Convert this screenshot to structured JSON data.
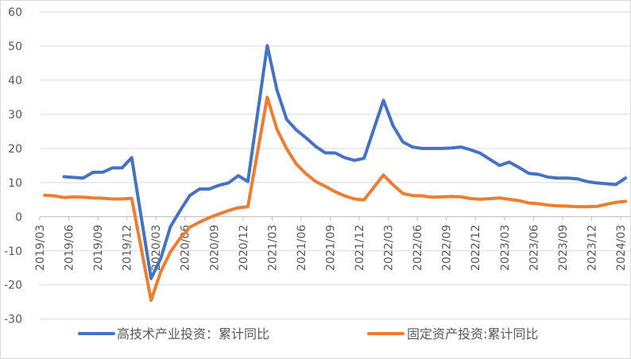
{
  "chart_data": {
    "type": "line",
    "title": "",
    "xlabel": "",
    "ylabel": "",
    "ylim": [
      -30,
      60
    ],
    "y_ticks": [
      -30,
      -20,
      -10,
      0,
      10,
      20,
      30,
      40,
      50,
      60
    ],
    "grid": "horizontal",
    "legend": "bottom",
    "x": [
      "2019/03",
      "2019/04",
      "2019/05",
      "2019/06",
      "2019/07",
      "2019/08",
      "2019/09",
      "2019/10",
      "2019/11",
      "2019/12",
      "2020/01",
      "2020/02",
      "2020/03",
      "2020/04",
      "2020/05",
      "2020/06",
      "2020/07",
      "2020/08",
      "2020/09",
      "2020/10",
      "2020/11",
      "2020/12",
      "2021/01",
      "2021/02",
      "2021/03",
      "2021/04",
      "2021/05",
      "2021/06",
      "2021/07",
      "2021/08",
      "2021/09",
      "2021/10",
      "2021/11",
      "2021/12",
      "2022/01",
      "2022/02",
      "2022/03",
      "2022/04",
      "2022/05",
      "2022/06",
      "2022/07",
      "2022/08",
      "2022/09",
      "2022/10",
      "2022/11",
      "2022/12",
      "2023/01",
      "2023/02",
      "2023/03",
      "2023/04",
      "2023/05",
      "2023/06",
      "2023/07",
      "2023/08",
      "2023/09",
      "2023/10",
      "2023/11",
      "2023/12",
      "2024/01",
      "2024/02",
      "2024/03"
    ],
    "x_tick_labels": [
      "2019/03",
      "2019/06",
      "2019/09",
      "2019/12",
      "2020/03",
      "2020/06",
      "2020/09",
      "2020/12",
      "2021/03",
      "2021/06",
      "2021/09",
      "2021/12",
      "2022/03",
      "2022/06",
      "2022/09",
      "2022/12",
      "2023/03",
      "2023/06",
      "2023/09",
      "2023/12",
      "2024/03"
    ],
    "series": [
      {
        "name": "高技术产业投资：累计同比",
        "color": "#4472C4",
        "values": [
          null,
          null,
          11.7,
          11.5,
          11.3,
          13.0,
          13.0,
          14.3,
          14.3,
          17.3,
          null,
          -18.1,
          -12.2,
          -2.9,
          1.8,
          6.2,
          8.1,
          8.1,
          9.2,
          9.9,
          12.0,
          10.3,
          null,
          50.1,
          37.1,
          28.5,
          25.4,
          23.1,
          20.6,
          18.7,
          18.7,
          17.3,
          16.5,
          17.1,
          null,
          34.1,
          26.6,
          21.9,
          20.4,
          20.0,
          20.0,
          20.0,
          20.1,
          20.4,
          19.6,
          18.6,
          null,
          15.0,
          16.0,
          14.4,
          12.7,
          12.4,
          11.6,
          11.3,
          11.3,
          11.1,
          10.3,
          9.9,
          null,
          9.4,
          11.3
        ]
      },
      {
        "name": "固定资产投资:累计同比",
        "color": "#ED7D31",
        "values": [
          6.3,
          6.1,
          5.6,
          5.8,
          5.7,
          5.5,
          5.4,
          5.2,
          5.2,
          5.4,
          null,
          -24.5,
          -16.1,
          -10.3,
          -6.3,
          -3.1,
          -1.6,
          -0.3,
          0.8,
          1.8,
          2.6,
          2.9,
          null,
          35.0,
          25.6,
          19.9,
          15.4,
          12.6,
          10.3,
          8.9,
          7.3,
          6.1,
          5.2,
          4.9,
          null,
          12.2,
          9.3,
          6.8,
          6.2,
          6.1,
          5.7,
          5.8,
          5.9,
          5.8,
          5.3,
          5.1,
          null,
          5.5,
          5.1,
          4.7,
          4.0,
          3.8,
          3.4,
          3.2,
          3.1,
          2.9,
          2.9,
          3.0,
          null,
          4.2,
          4.5
        ]
      }
    ]
  }
}
